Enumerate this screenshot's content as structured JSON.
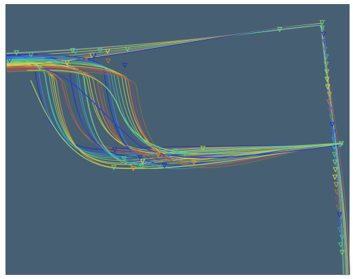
{
  "scene": {
    "background_color": "#465f73",
    "frame_color": "#ffffff",
    "palette": [
      "#1f2fb8",
      "#2c5ad0",
      "#3a8fd6",
      "#3fb3c9",
      "#4cc7a0",
      "#7fd36f",
      "#b9d84f",
      "#e4d24a",
      "#d99a3c",
      "#c86a3a",
      "#a24a6a",
      "#8a7a3a"
    ],
    "trajectory_count": 36,
    "marker_shape": "triangle-down"
  }
}
